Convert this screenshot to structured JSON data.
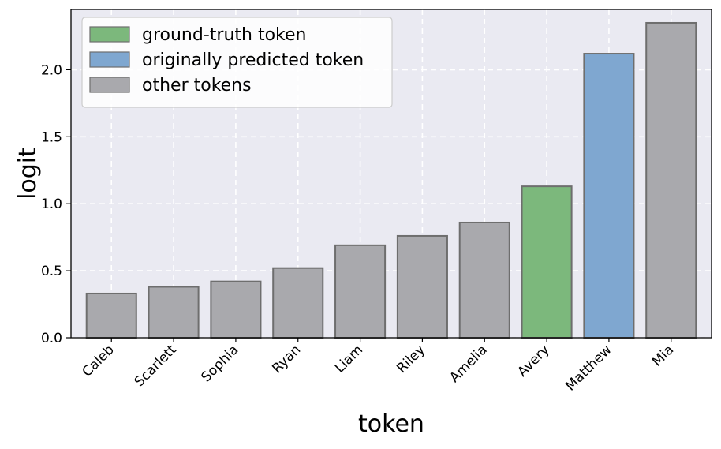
{
  "chart_data": {
    "type": "bar",
    "xlabel": "token",
    "ylabel": "logit",
    "categories": [
      "Caleb",
      "Scarlett",
      "Sophia",
      "Ryan",
      "Liam",
      "Riley",
      "Amelia",
      "Avery",
      "Matthew",
      "Mia"
    ],
    "values": [
      0.33,
      0.38,
      0.42,
      0.52,
      0.69,
      0.76,
      0.86,
      1.13,
      2.12,
      2.35
    ],
    "bar_groups": [
      "other",
      "other",
      "other",
      "other",
      "other",
      "other",
      "other",
      "ground_truth",
      "predicted",
      "other"
    ],
    "ylim": [
      0,
      2.45
    ],
    "yticks": [
      "0.0",
      "0.5",
      "1.0",
      "1.5",
      "2.0"
    ],
    "grid": true,
    "legend_position": "top-left",
    "legend": [
      {
        "key": "ground_truth",
        "label": "ground-truth token",
        "color": "#7cb87c"
      },
      {
        "key": "predicted",
        "label": "originally predicted token",
        "color": "#7fa7d0"
      },
      {
        "key": "other",
        "label": "other tokens",
        "color": "#a9a9ad"
      }
    ],
    "colors": {
      "plot_background": "#eaeaf2",
      "grid": "#ffffff",
      "bar_edge": "#6e6e6e"
    }
  }
}
